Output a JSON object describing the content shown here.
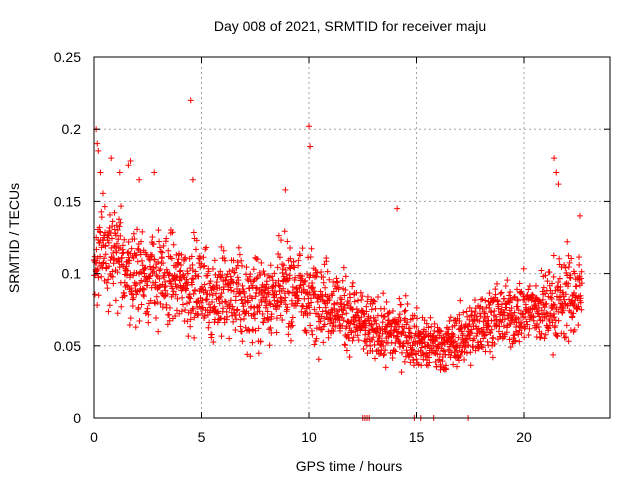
{
  "chart_data": {
    "type": "scatter",
    "title": "Day 008 of 2021, SRMTID for receiver maju",
    "xlabel": "GPS time / hours",
    "ylabel": "SRMTID / TECUs",
    "xlim": [
      0,
      24
    ],
    "ylim": [
      0,
      0.25
    ],
    "xticks": [
      0,
      5,
      10,
      15,
      20
    ],
    "xtick_labels": [
      "0",
      "5",
      "10",
      "15",
      "20"
    ],
    "yticks": [
      0,
      0.05,
      0.1,
      0.15,
      0.2,
      0.25
    ],
    "ytick_labels": [
      "0",
      "0.05",
      "0.1",
      "0.15",
      "0.2",
      "0.25"
    ],
    "grid": true,
    "marker": "+",
    "color": "#ff0000",
    "envelope": {
      "hours": [
        0,
        0.5,
        1,
        1.5,
        2,
        2.5,
        3,
        3.5,
        4,
        4.5,
        5,
        5.5,
        6,
        6.5,
        7,
        7.5,
        8,
        8.5,
        9,
        9.5,
        10,
        10.5,
        11,
        11.5,
        12,
        12.5,
        13,
        13.5,
        14,
        14.5,
        15,
        15.5,
        16,
        16.5,
        17,
        17.5,
        18,
        18.5,
        19,
        19.5,
        20,
        20.5,
        21,
        21.5,
        22,
        22.5,
        22.7
      ],
      "median": [
        0.11,
        0.115,
        0.11,
        0.105,
        0.1,
        0.1,
        0.095,
        0.095,
        0.095,
        0.09,
        0.09,
        0.085,
        0.085,
        0.085,
        0.08,
        0.08,
        0.085,
        0.085,
        0.09,
        0.09,
        0.085,
        0.085,
        0.08,
        0.075,
        0.07,
        0.065,
        0.06,
        0.06,
        0.06,
        0.06,
        0.055,
        0.05,
        0.05,
        0.05,
        0.055,
        0.06,
        0.065,
        0.07,
        0.07,
        0.07,
        0.075,
        0.075,
        0.075,
        0.08,
        0.085,
        0.085,
        0.085
      ],
      "spread": [
        0.03,
        0.03,
        0.03,
        0.03,
        0.03,
        0.03,
        0.03,
        0.03,
        0.028,
        0.03,
        0.028,
        0.028,
        0.028,
        0.028,
        0.028,
        0.028,
        0.028,
        0.028,
        0.03,
        0.028,
        0.028,
        0.028,
        0.025,
        0.025,
        0.023,
        0.022,
        0.02,
        0.02,
        0.02,
        0.02,
        0.018,
        0.017,
        0.017,
        0.017,
        0.018,
        0.02,
        0.02,
        0.02,
        0.02,
        0.02,
        0.022,
        0.022,
        0.025,
        0.028,
        0.03,
        0.028,
        0.028
      ],
      "samples_per_hour": 90
    },
    "outliers": [
      {
        "x": 0.1,
        "y": 0.2
      },
      {
        "x": 0.15,
        "y": 0.19
      },
      {
        "x": 0.2,
        "y": 0.185
      },
      {
        "x": 0.3,
        "y": 0.17
      },
      {
        "x": 0.8,
        "y": 0.18
      },
      {
        "x": 1.2,
        "y": 0.17
      },
      {
        "x": 1.6,
        "y": 0.175
      },
      {
        "x": 1.7,
        "y": 0.178
      },
      {
        "x": 2.1,
        "y": 0.165
      },
      {
        "x": 2.8,
        "y": 0.17
      },
      {
        "x": 4.5,
        "y": 0.22
      },
      {
        "x": 4.6,
        "y": 0.165
      },
      {
        "x": 8.9,
        "y": 0.158
      },
      {
        "x": 10.0,
        "y": 0.202
      },
      {
        "x": 10.05,
        "y": 0.188
      },
      {
        "x": 14.1,
        "y": 0.145
      },
      {
        "x": 21.4,
        "y": 0.18
      },
      {
        "x": 21.5,
        "y": 0.17
      },
      {
        "x": 21.6,
        "y": 0.162
      },
      {
        "x": 22.6,
        "y": 0.14
      }
    ],
    "zero_points": [
      12.5,
      12.6,
      12.7,
      12.8,
      14.9,
      15.2,
      15.8,
      17.4
    ]
  }
}
